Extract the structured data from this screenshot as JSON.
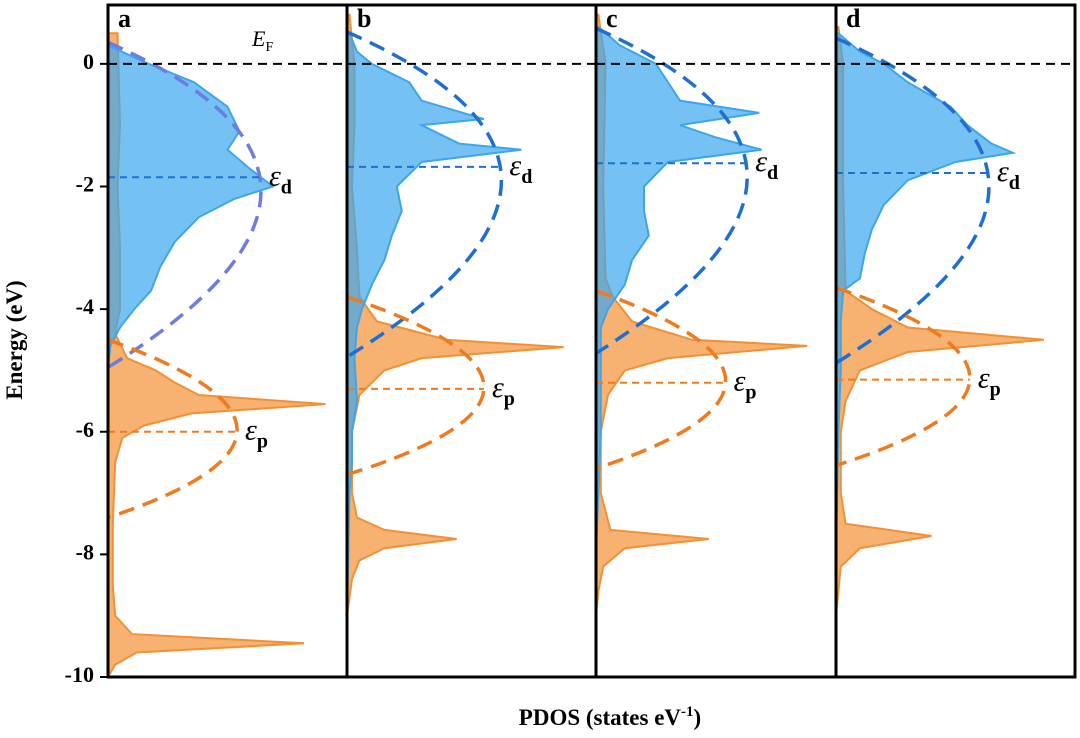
{
  "chart_data": {
    "type": "area",
    "ylabel": "Energy (eV)",
    "xlabel": [
      "PDOS (states eV",
      "-1",
      ")"
    ],
    "ylim": [
      -10,
      0.96
    ],
    "yticks": [
      0,
      -2,
      -4,
      -6,
      -8,
      -10
    ],
    "xlim": [
      0,
      1
    ],
    "fermi_level": 0,
    "fermi_label": [
      "E",
      "F"
    ],
    "center_symbol": "ε",
    "d_sub": "d",
    "p_sub": "p",
    "panels": [
      {
        "label": "a",
        "d_band": {
          "color": "#3aa6ef",
          "center": -1.85,
          "energy": [
            0.3,
            0,
            -0.3,
            -0.7,
            -1.1,
            -1.4,
            -1.7,
            -2.0,
            -2.2,
            -2.5,
            -2.9,
            -3.3,
            -3.7,
            -4.0,
            -4.3,
            -4.6,
            -5.0
          ],
          "values": [
            0,
            0.17,
            0.36,
            0.5,
            0.55,
            0.5,
            0.59,
            0.69,
            0.53,
            0.38,
            0.28,
            0.22,
            0.18,
            0.11,
            0.05,
            0.01,
            0
          ]
        },
        "p_band": {
          "color": "#f39034",
          "center": -6.0,
          "energy": [
            0.5,
            -1,
            -2,
            -3,
            -4,
            -4.4,
            -4.8,
            -5.0,
            -5.2,
            -5.4,
            -5.55,
            -5.7,
            -5.9,
            -6.1,
            -6.5,
            -7.5,
            -8.5,
            -9.0,
            -9.3,
            -9.45,
            -9.6,
            -9.8,
            -10
          ],
          "values": [
            0.04,
            0.05,
            0.04,
            0.05,
            0.05,
            0.03,
            0.08,
            0.2,
            0.28,
            0.38,
            0.91,
            0.35,
            0.15,
            0.06,
            0.03,
            0.02,
            0.02,
            0.03,
            0.1,
            0.82,
            0.12,
            0.03,
            0
          ]
        }
      },
      {
        "label": "b",
        "d_band": {
          "color": "#3aa6ef",
          "center": -1.68,
          "energy": [
            0.5,
            0.2,
            0,
            -0.3,
            -0.6,
            -0.9,
            -1.0,
            -1.3,
            -1.4,
            -1.6,
            -2.0,
            -2.4,
            -2.8,
            -3.2,
            -3.6,
            -4.0,
            -4.3,
            -4.8,
            -5.5,
            -6,
            -6.5,
            -7,
            -8,
            -9
          ],
          "values": [
            0.01,
            0.04,
            0.1,
            0.25,
            0.3,
            0.55,
            0.3,
            0.45,
            0.7,
            0.3,
            0.2,
            0.22,
            0.18,
            0.15,
            0.1,
            0.06,
            0.04,
            0.03,
            0.04,
            0.02,
            0.02,
            0.01,
            0.005,
            0
          ]
        },
        "p_band": {
          "color": "#f39034",
          "center": -5.3,
          "energy": [
            0.8,
            0,
            -1,
            -2,
            -3,
            -3.8,
            -4.2,
            -4.5,
            -4.62,
            -4.8,
            -5.0,
            -5.4,
            -6,
            -7,
            -7.4,
            -7.6,
            -7.75,
            -7.9,
            -8.1,
            -8.4,
            -9
          ],
          "values": [
            0.01,
            0.03,
            0.03,
            0.02,
            0.04,
            0.05,
            0.12,
            0.4,
            0.87,
            0.3,
            0.15,
            0.05,
            0.02,
            0.02,
            0.04,
            0.15,
            0.44,
            0.15,
            0.05,
            0.02,
            0
          ]
        }
      },
      {
        "label": "c",
        "d_band": {
          "color": "#3aa6ef",
          "center": -1.62,
          "energy": [
            0.6,
            0.3,
            0,
            -0.3,
            -0.6,
            -0.8,
            -1.0,
            -1.2,
            -1.4,
            -1.6,
            -2.0,
            -2.4,
            -2.8,
            -3.2,
            -3.6,
            -4.0,
            -4.3,
            -5,
            -6,
            -7,
            -8
          ],
          "values": [
            0.01,
            0.1,
            0.25,
            0.3,
            0.35,
            0.68,
            0.35,
            0.5,
            0.69,
            0.3,
            0.2,
            0.2,
            0.22,
            0.15,
            0.12,
            0.05,
            0.02,
            0.02,
            0.02,
            0.01,
            0
          ]
        },
        "p_band": {
          "color": "#f39034",
          "center": -5.2,
          "energy": [
            0.8,
            0,
            -2,
            -3.5,
            -3.8,
            -4.2,
            -4.5,
            -4.6,
            -4.8,
            -5.0,
            -5.4,
            -6,
            -7,
            -7.6,
            -7.75,
            -7.9,
            -8.2,
            -8.6,
            -9
          ],
          "values": [
            0.01,
            0.04,
            0.03,
            0.04,
            0.07,
            0.15,
            0.4,
            0.88,
            0.3,
            0.12,
            0.05,
            0.02,
            0.02,
            0.06,
            0.47,
            0.12,
            0.03,
            0.01,
            0
          ]
        }
      },
      {
        "label": "d",
        "d_band": {
          "color": "#3aa6ef",
          "center": -1.78,
          "energy": [
            0.5,
            0.2,
            0,
            -0.3,
            -0.7,
            -1.0,
            -1.3,
            -1.45,
            -1.6,
            -1.9,
            -2.3,
            -2.7,
            -3.1,
            -3.5,
            -3.7,
            -4.2,
            -5,
            -6,
            -7,
            -8
          ],
          "values": [
            0.01,
            0.1,
            0.2,
            0.3,
            0.48,
            0.55,
            0.65,
            0.74,
            0.5,
            0.3,
            0.2,
            0.15,
            0.12,
            0.1,
            0.03,
            0.02,
            0.02,
            0.01,
            0.005,
            0
          ]
        },
        "p_band": {
          "color": "#f39034",
          "center": -5.15,
          "energy": [
            0.6,
            0,
            -2,
            -3.7,
            -4.0,
            -4.3,
            -4.5,
            -4.7,
            -5.0,
            -5.5,
            -6,
            -7,
            -7.5,
            -7.7,
            -7.9,
            -8.2,
            -9
          ],
          "values": [
            0.01,
            0.03,
            0.03,
            0.04,
            0.15,
            0.3,
            0.87,
            0.3,
            0.1,
            0.04,
            0.02,
            0.02,
            0.04,
            0.4,
            0.1,
            0.02,
            0
          ]
        }
      }
    ]
  }
}
